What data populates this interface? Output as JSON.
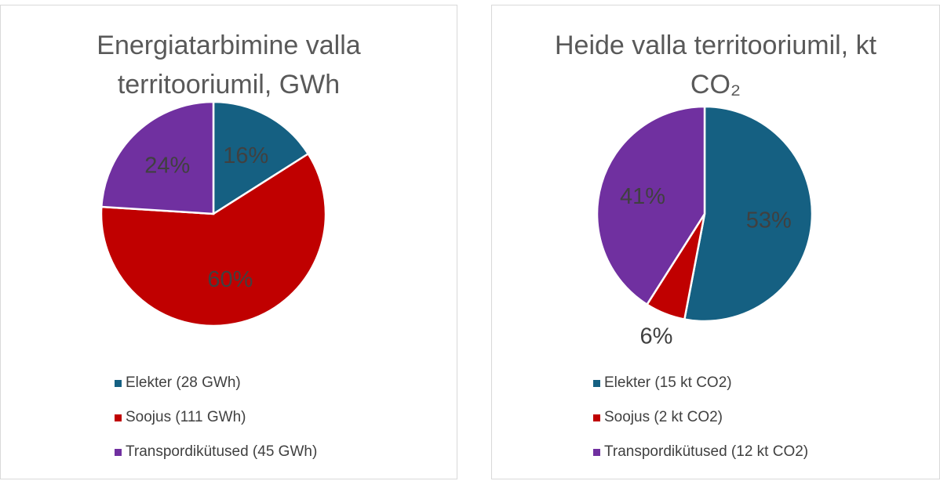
{
  "chart_data": [
    {
      "type": "pie",
      "title": "Energiatarbimine valla territooriumil, GWh",
      "categories": [
        "Elekter (28 GWh)",
        "Soojus (111 GWh)",
        "Transpordikütused (45 GWh)"
      ],
      "values": [
        16,
        60,
        24
      ],
      "value_labels": [
        "16%",
        "60%",
        "24%"
      ],
      "colors": [
        "#156082",
        "#c00000",
        "#7030a0"
      ],
      "legend": "bottom"
    },
    {
      "type": "pie",
      "title": "Heide valla territooriumil, kt CO₂",
      "categories": [
        "Elekter (15 kt CO2)",
        "Soojus (2 kt CO2)",
        "Transpordikütused (12 kt CO2)"
      ],
      "values": [
        53,
        6,
        41
      ],
      "value_labels": [
        "53%",
        "6%",
        "41%"
      ],
      "colors": [
        "#156082",
        "#c00000",
        "#7030a0"
      ],
      "legend": "bottom"
    }
  ]
}
